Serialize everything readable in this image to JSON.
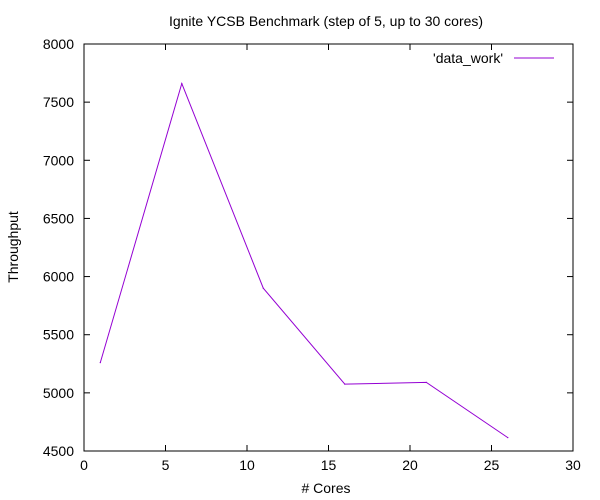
{
  "chart_data": {
    "type": "line",
    "title": "Ignite YCSB Benchmark (step of 5, up to 30 cores)",
    "xlabel": "# Cores",
    "ylabel": "Throughput",
    "xlim": [
      0,
      30
    ],
    "ylim": [
      4500,
      8000
    ],
    "xticks": [
      0,
      5,
      10,
      15,
      20,
      25,
      30
    ],
    "yticks": [
      4500,
      5000,
      5500,
      6000,
      6500,
      7000,
      7500,
      8000
    ],
    "grid": false,
    "legend_position": "top-right",
    "series": [
      {
        "name": "'data_work'",
        "color": "#9400d3",
        "x": [
          1,
          6,
          11,
          16,
          21,
          26
        ],
        "y": [
          5260,
          7660,
          5900,
          5075,
          5090,
          4615
        ]
      }
    ]
  }
}
